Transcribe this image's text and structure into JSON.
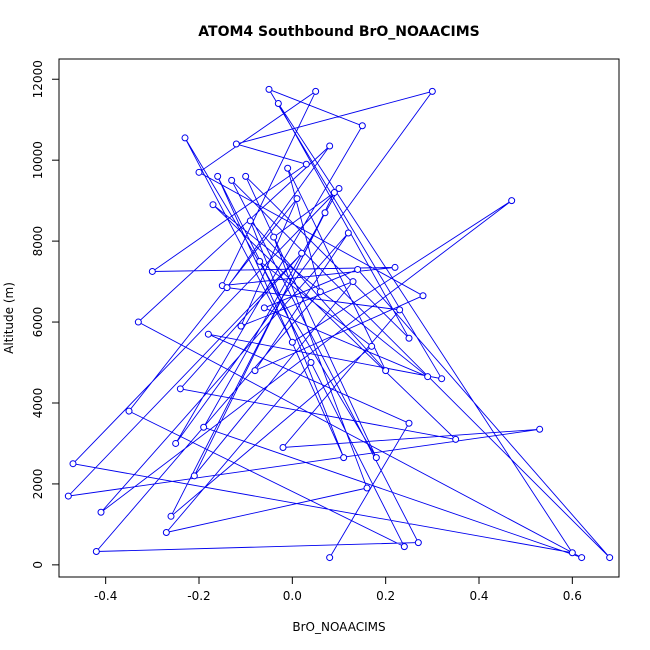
{
  "chart_data": {
    "type": "line",
    "title": "ATOM4 Southbound BrO_NOAACIMS",
    "xlabel": "BrO_NOAACIMS",
    "ylabel": "Altitude (m)",
    "xlim": [
      -0.5,
      0.7
    ],
    "ylim": [
      -300,
      12500
    ],
    "xticks": [
      -0.4,
      -0.2,
      0.0,
      0.2,
      0.4,
      0.6
    ],
    "yticks": [
      0,
      2000,
      4000,
      6000,
      8000,
      10000,
      12000
    ],
    "grid": false,
    "legend": "none",
    "colors": {
      "series": "#0000ee",
      "axis": "#000000",
      "background": "#ffffff"
    },
    "series": [
      {
        "marker": "open-circle",
        "x": [
          0.08,
          0.25,
          -0.18,
          0.32,
          -0.05,
          0.15,
          -0.25,
          0.3,
          -0.12,
          0.03,
          -0.3,
          0.22,
          -0.15,
          0.05,
          -0.2,
          0.28,
          -0.08,
          0.12,
          -0.41,
          0.47,
          0.0,
          -0.23,
          0.18,
          -0.1,
          0.25,
          -0.03,
          0.6,
          -0.47,
          0.1,
          -0.19,
          0.62,
          -0.33,
          0.08,
          -0.14,
          0.23,
          -0.02,
          0.53,
          -0.48,
          0.02,
          -0.24,
          0.35,
          -0.17,
          0.29,
          -0.06,
          0.14,
          0.68,
          -0.13,
          0.27,
          -0.42,
          0.06,
          -0.01,
          0.2,
          -0.09,
          0.11,
          -0.16,
          0.04,
          -0.27,
          0.16,
          -0.04,
          0.09,
          -0.21,
          0.13,
          -0.11,
          0.01,
          -0.35,
          0.24,
          -0.07,
          0.17,
          -0.26,
          0.07
        ],
        "y": [
          180,
          3500,
          5700,
          4600,
          11750,
          10850,
          3000,
          11700,
          10400,
          9900,
          7250,
          7350,
          6900,
          11700,
          9700,
          6650,
          4800,
          8200,
          1300,
          9000,
          5500,
          10550,
          2650,
          9600,
          5600,
          11400,
          300,
          2500,
          9300,
          3400,
          180,
          6000,
          10350,
          6850,
          6300,
          2900,
          3350,
          1700,
          7700,
          4350,
          3100,
          8900,
          4650,
          6350,
          7300,
          180,
          9500,
          550,
          330,
          6750,
          9800,
          4800,
          8500,
          2650,
          9600,
          5000,
          800,
          1900,
          8100,
          9200,
          2200,
          7000,
          5900,
          9050,
          3800,
          450,
          7500,
          5400,
          1200,
          8700
        ]
      }
    ]
  }
}
